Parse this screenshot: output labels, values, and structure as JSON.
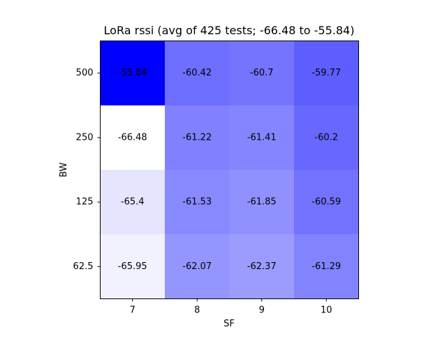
{
  "chart_data": {
    "type": "heatmap",
    "title": "LoRa rssi (avg of 425 tests; -66.48 to -55.84)",
    "xlabel": "SF",
    "ylabel": "BW",
    "x_categories": [
      "7",
      "8",
      "9",
      "10"
    ],
    "y_categories": [
      "500",
      "250",
      "125",
      "62.5"
    ],
    "values": [
      [
        -55.84,
        -60.42,
        -60.7,
        -59.77
      ],
      [
        -66.48,
        -61.22,
        -61.41,
        -60.2
      ],
      [
        -65.4,
        -61.53,
        -61.85,
        -60.59
      ],
      [
        -65.95,
        -62.07,
        -62.37,
        -61.29
      ]
    ],
    "value_labels": [
      [
        "-55.84",
        "-60.42",
        "-60.7",
        "-59.77"
      ],
      [
        "-66.48",
        "-61.22",
        "-61.41",
        "-60.2"
      ],
      [
        "-65.4",
        "-61.53",
        "-61.85",
        "-60.59"
      ],
      [
        "-65.95",
        "-62.07",
        "-62.37",
        "-61.29"
      ]
    ],
    "vmin": -66.48,
    "vmax": -55.84,
    "colormap": {
      "low": "#ffffff",
      "high": "#0000ff"
    },
    "grid": false,
    "legend": "none"
  }
}
